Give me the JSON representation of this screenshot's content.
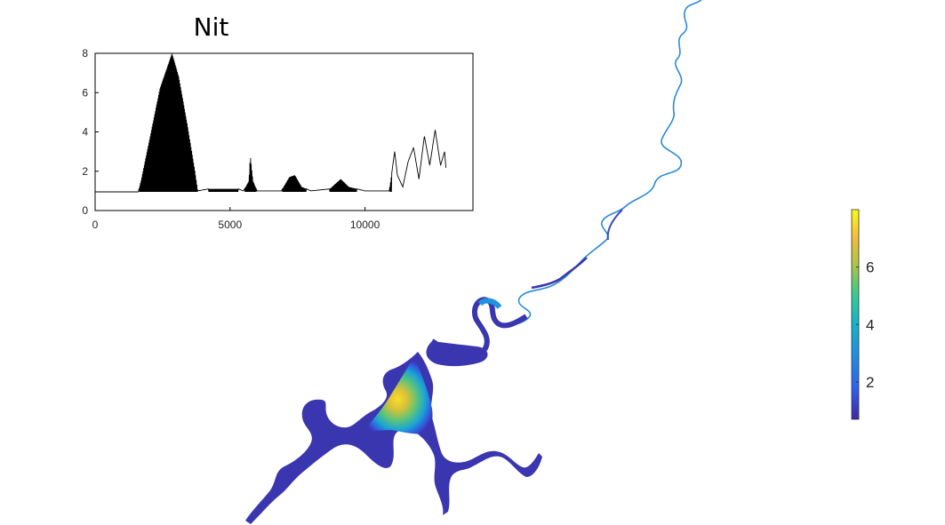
{
  "chart_data": {
    "type": "line",
    "title": "Nit",
    "xlabel": "",
    "ylabel": "",
    "xlim": [
      0,
      14000
    ],
    "ylim": [
      0,
      8
    ],
    "x_ticks": [
      0,
      5000,
      10000
    ],
    "x_tick_labels": [
      "0",
      "5000",
      "10000"
    ],
    "y_ticks": [
      0,
      2,
      4,
      6,
      8
    ],
    "y_tick_labels": [
      "0",
      "2",
      "4",
      "6",
      "8"
    ],
    "series": [
      {
        "name": "Nit",
        "color": "#000000",
        "envelope_points": [
          [
            0,
            0.95
          ],
          [
            1600,
            0.95
          ],
          [
            1700,
            1.5
          ],
          [
            2000,
            3.5
          ],
          [
            2400,
            6.2
          ],
          [
            2850,
            8.0
          ],
          [
            3100,
            6.8
          ],
          [
            3400,
            4.5
          ],
          [
            3700,
            2.0
          ],
          [
            3800,
            1.0
          ],
          [
            4200,
            1.1
          ],
          [
            5300,
            1.1
          ],
          [
            5500,
            1.0
          ],
          [
            5700,
            1.5
          ],
          [
            5750,
            2.8
          ],
          [
            5850,
            1.5
          ],
          [
            6000,
            1.0
          ],
          [
            6900,
            1.0
          ],
          [
            7200,
            1.7
          ],
          [
            7400,
            1.8
          ],
          [
            7650,
            1.2
          ],
          [
            8000,
            1.0
          ],
          [
            8700,
            1.1
          ],
          [
            9100,
            1.6
          ],
          [
            9400,
            1.2
          ],
          [
            10000,
            1.0
          ],
          [
            10900,
            1.0
          ],
          [
            11100,
            3.0
          ],
          [
            11200,
            1.8
          ],
          [
            11400,
            1.2
          ],
          [
            11600,
            2.5
          ],
          [
            11800,
            3.2
          ],
          [
            12000,
            1.6
          ],
          [
            12200,
            3.8
          ],
          [
            12400,
            2.3
          ],
          [
            12600,
            4.1
          ],
          [
            12800,
            2.3
          ],
          [
            12950,
            3.0
          ],
          [
            13000,
            2.1
          ]
        ]
      }
    ],
    "colorbar": {
      "range": [
        0.7,
        8.0
      ],
      "ticks": [
        2,
        4,
        6
      ],
      "tick_labels": [
        "2",
        "4",
        "6"
      ],
      "colormap": [
        "#3e26a8",
        "#2f62f0",
        "#1f92e0",
        "#12b8c6",
        "#3cca8f",
        "#a8c549",
        "#f4bd3a",
        "#f9fb15"
      ]
    }
  }
}
